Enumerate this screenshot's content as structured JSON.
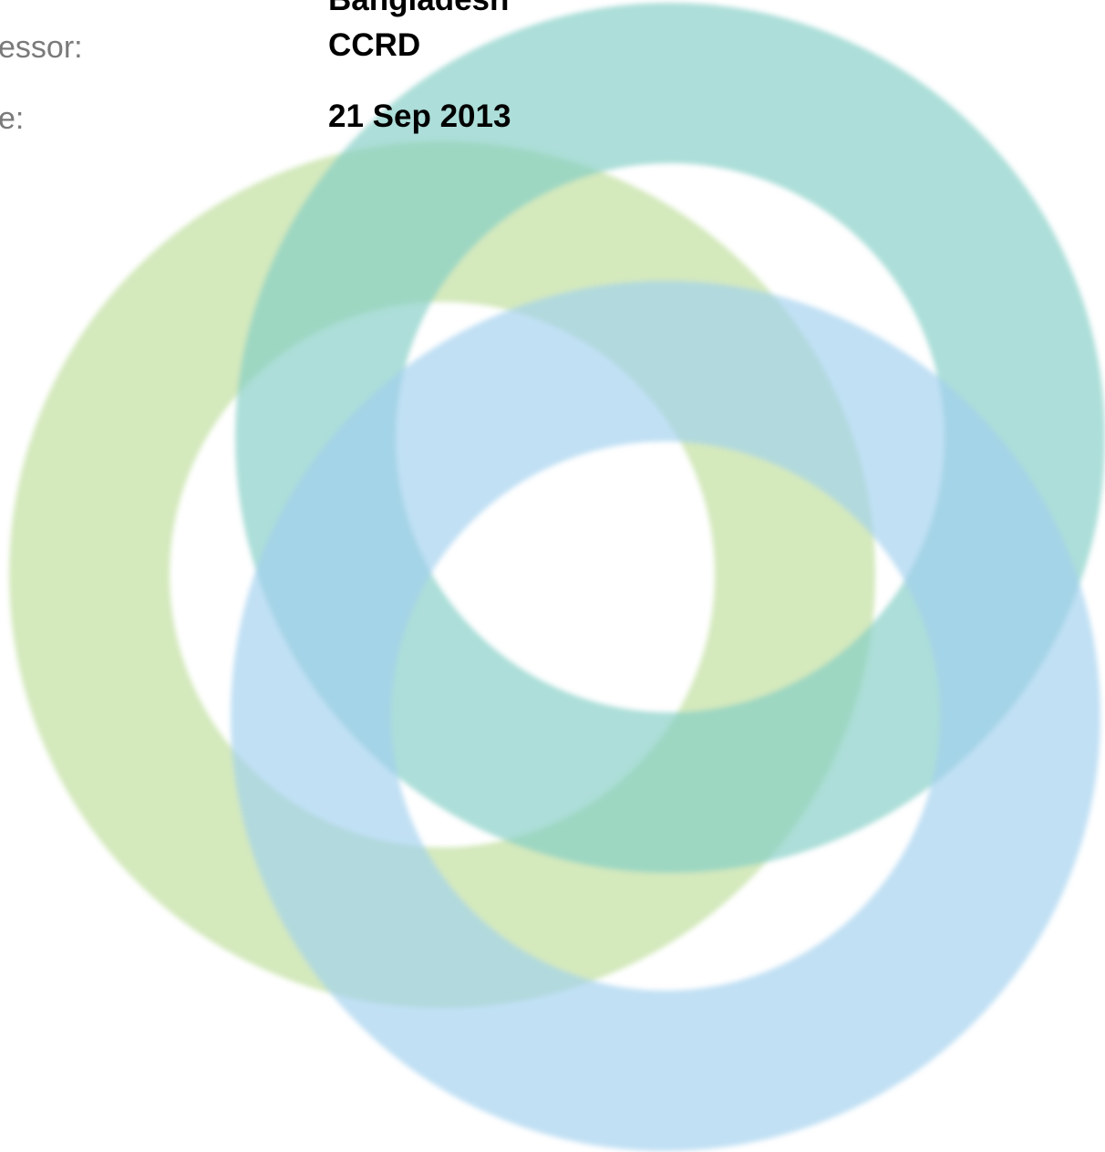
{
  "fields": [
    {
      "label": "",
      "value": "Bangladesh"
    },
    {
      "label": "essor:",
      "value": "CCRD"
    },
    {
      "label": "e:",
      "value": "21 Sep 2013"
    }
  ]
}
